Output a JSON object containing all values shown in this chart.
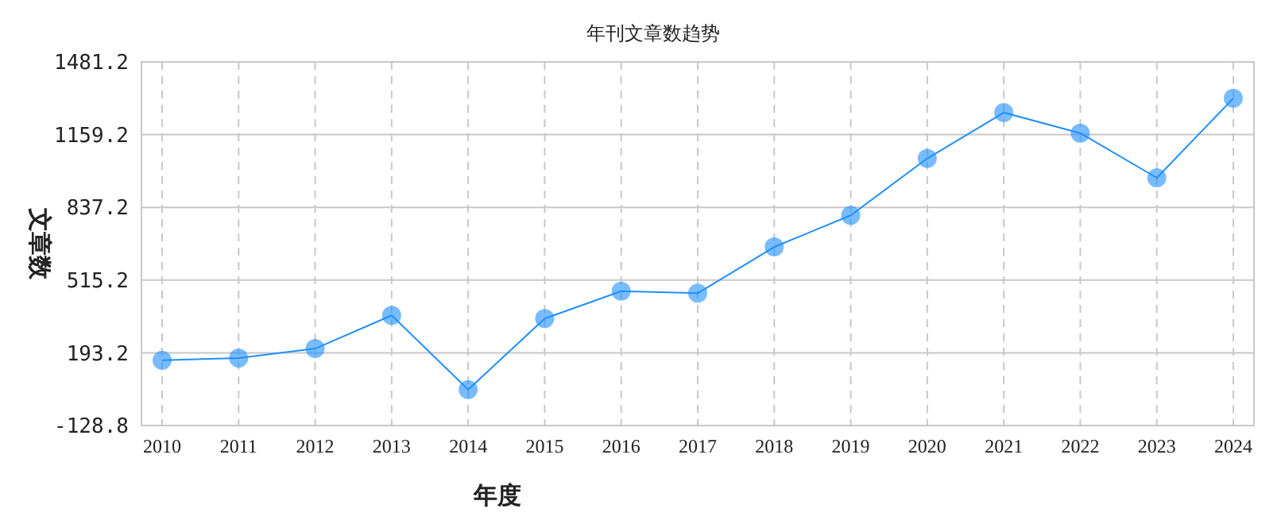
{
  "chart_data": {
    "type": "line",
    "title": "年刊文章数趋势",
    "xlabel": "年度",
    "ylabel": "文章数",
    "categories": [
      "2010",
      "2011",
      "2012",
      "2013",
      "2014",
      "2015",
      "2016",
      "2017",
      "2018",
      "2019",
      "2020",
      "2021",
      "2022",
      "2023",
      "2024"
    ],
    "series": [
      {
        "color": "#1e90ff",
        "values": [
          160,
          170,
          212,
          359,
          30,
          345,
          466,
          457,
          662,
          802,
          1054,
          1257,
          1166,
          968,
          1320
        ]
      }
    ],
    "ylim": [
      -128.8,
      1481.2
    ],
    "yticks": [
      -128.8,
      193.2,
      515.2,
      837.2,
      1159.2,
      1481.2
    ],
    "grid": true,
    "marker": "circle"
  }
}
